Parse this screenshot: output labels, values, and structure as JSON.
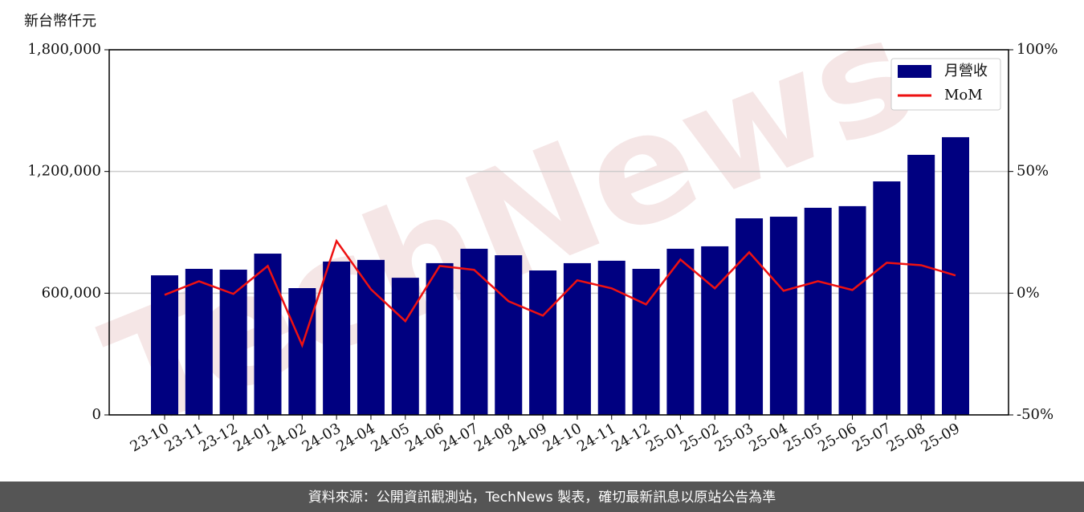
{
  "chart_data": {
    "type": "bar_line",
    "ylabel": "新台幣仟元",
    "watermark": "TechNews",
    "footer": "資料來源：公開資訊觀測站，TechNews 製表，確切最新訊息以原站公告為準",
    "categories": [
      "23-10",
      "23-11",
      "23-12",
      "24-01",
      "24-02",
      "24-03",
      "24-04",
      "24-05",
      "24-06",
      "24-07",
      "24-08",
      "24-09",
      "24-10",
      "24-11",
      "24-12",
      "25-01",
      "25-02",
      "25-03",
      "25-04",
      "25-05",
      "25-06",
      "25-07",
      "25-08",
      "25-09"
    ],
    "series": [
      {
        "name": "月營收",
        "type": "bar",
        "color": "#000080",
        "values": [
          688000,
          720000,
          716000,
          795000,
          625000,
          756000,
          764000,
          676000,
          748000,
          819000,
          787000,
          712000,
          748000,
          760000,
          720000,
          819000,
          831000,
          969000,
          977000,
          1021000,
          1029000,
          1151000,
          1282000,
          1369000
        ]
      },
      {
        "name": "MoM",
        "type": "line",
        "color": "#ee1111",
        "axis": "y2",
        "values": [
          -0.7,
          4.9,
          -0.3,
          11.2,
          -21.4,
          21.4,
          1.6,
          -11.5,
          11.2,
          9.6,
          -3.3,
          -9.2,
          5.3,
          2.0,
          -4.6,
          13.8,
          2.0,
          16.8,
          1.0,
          4.9,
          1.3,
          12.5,
          11.5,
          7.3
        ]
      }
    ],
    "ylim": [
      0,
      1800000
    ],
    "yticks": [
      0,
      {
        "value": 600000,
        "label": "600,000"
      },
      {
        "value": 1200000,
        "label": "1,200,000"
      },
      {
        "value": 1800000,
        "label": "1,800,000"
      }
    ],
    "y2lim": [
      -50,
      100
    ],
    "y2ticks": [
      {
        "value": -50,
        "label": "-50%"
      },
      {
        "value": 0,
        "label": "0%"
      },
      {
        "value": 50,
        "label": "50%"
      },
      {
        "value": 100,
        "label": "100%"
      }
    ],
    "grid": true,
    "legend": "upper right"
  }
}
